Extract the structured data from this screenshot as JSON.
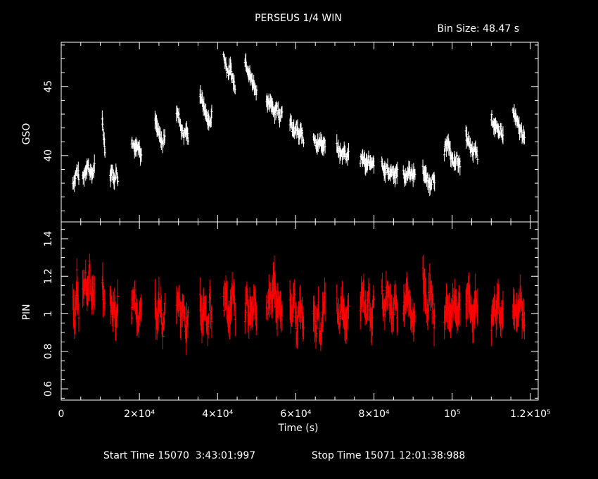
{
  "header": {
    "title": "PERSEUS 1/4 WIN",
    "bin_size": "Bin Size: 48.47 s"
  },
  "footer": {
    "start_time": "Start Time 15070  3:43:01:997",
    "stop_time": "Stop Time 15071 12:01:38:988"
  },
  "colors": {
    "background": "#000000",
    "axes": "#ffffff",
    "gso": "#ffffff",
    "pin": "#ff0000"
  },
  "chart_data": [
    {
      "type": "scatter",
      "panel": "top",
      "ylabel": "GSO",
      "xlim": [
        0,
        122000
      ],
      "ylim": [
        35.2,
        48.2
      ],
      "yticks": [
        {
          "value": 40,
          "label": "40"
        },
        {
          "value": 45,
          "label": "45"
        }
      ],
      "grid": false,
      "series": [
        {
          "color": "#ffffff",
          "segments": [
            {
              "x0": 3000,
              "x1": 4500,
              "values": [
                38.0,
                38.3,
                39.0,
                38.5
              ]
            },
            {
              "x0": 5500,
              "x1": 8500,
              "values": [
                38.3,
                38.8,
                39.4,
                38.9,
                38.6,
                39.2
              ]
            },
            {
              "x0": 10500,
              "x1": 11200,
              "values": [
                42.4,
                40.5
              ]
            },
            {
              "x0": 12500,
              "x1": 14500,
              "values": [
                38.5,
                39.0,
                38.1,
                38.8,
                38.4
              ]
            },
            {
              "x0": 18000,
              "x1": 20500,
              "values": [
                41.0,
                40.6,
                40.9,
                39.8
              ]
            },
            {
              "x0": 24000,
              "x1": 26500,
              "values": [
                42.6,
                42.0,
                41.5,
                41.2,
                40.8,
                41.6
              ]
            },
            {
              "x0": 29500,
              "x1": 32500,
              "values": [
                43.2,
                42.8,
                42.0,
                41.5,
                41.8,
                41.3
              ]
            },
            {
              "x0": 35500,
              "x1": 38500,
              "values": [
                44.5,
                44.0,
                43.5,
                43.0,
                42.6,
                42.3,
                43.0
              ]
            },
            {
              "x0": 41500,
              "x1": 44500,
              "values": [
                47.3,
                46.6,
                46.0,
                46.3,
                45.5,
                45.0
              ]
            },
            {
              "x0": 47000,
              "x1": 50000,
              "values": [
                47.0,
                46.5,
                46.0,
                45.6,
                45.3,
                45.0,
                44.6
              ]
            },
            {
              "x0": 52500,
              "x1": 56500,
              "values": [
                44.2,
                43.6,
                43.8,
                43.2,
                43.5,
                42.8,
                43.4
              ]
            },
            {
              "x0": 58500,
              "x1": 62000,
              "values": [
                42.5,
                42.0,
                41.6,
                42.1,
                41.3,
                41.8,
                41.0
              ]
            },
            {
              "x0": 64500,
              "x1": 67500,
              "values": [
                41.5,
                41.0,
                40.7,
                41.2,
                40.5,
                40.9
              ]
            },
            {
              "x0": 70500,
              "x1": 73500,
              "values": [
                40.6,
                40.3,
                40.0,
                40.5,
                39.9,
                40.2
              ]
            },
            {
              "x0": 76500,
              "x1": 80000,
              "values": [
                39.6,
                39.9,
                39.3,
                39.7,
                39.2,
                39.5
              ]
            },
            {
              "x0": 82000,
              "x1": 86000,
              "values": [
                39.3,
                38.8,
                39.1,
                38.6,
                39.0,
                38.5,
                38.9
              ]
            },
            {
              "x0": 87500,
              "x1": 90500,
              "values": [
                38.7,
                38.4,
                39.0,
                38.5,
                38.8
              ]
            },
            {
              "x0": 92500,
              "x1": 95500,
              "values": [
                39.0,
                38.6,
                38.2,
                37.9,
                38.3,
                38.0
              ]
            },
            {
              "x0": 98000,
              "x1": 102000,
              "values": [
                40.2,
                41.2,
                40.0,
                39.4,
                39.8,
                39.2
              ]
            },
            {
              "x0": 103500,
              "x1": 106500,
              "values": [
                41.5,
                41.0,
                40.5,
                40.1,
                40.6,
                40.0
              ]
            },
            {
              "x0": 110000,
              "x1": 113000,
              "values": [
                42.8,
                42.3,
                42.0,
                41.6,
                41.9,
                41.3
              ]
            },
            {
              "x0": 115500,
              "x1": 118500,
              "values": [
                43.2,
                42.8,
                42.3,
                41.9,
                41.6,
                41.2
              ]
            }
          ]
        }
      ]
    },
    {
      "type": "scatter",
      "panel": "bottom",
      "xlabel": "Time (s)",
      "ylabel": "PIN",
      "xlim": [
        0,
        122000
      ],
      "ylim": [
        0.54,
        1.49
      ],
      "xticks": [
        {
          "value": 0,
          "label": "0"
        },
        {
          "value": 20000,
          "label": "2×10⁴"
        },
        {
          "value": 40000,
          "label": "4×10⁴"
        },
        {
          "value": 60000,
          "label": "6×10⁴"
        },
        {
          "value": 80000,
          "label": "8×10⁴"
        },
        {
          "value": 100000,
          "label": "10⁵"
        },
        {
          "value": 120000,
          "label": "1.2×10⁵"
        }
      ],
      "yticks": [
        {
          "value": 0.6,
          "label": "0.6"
        },
        {
          "value": 0.8,
          "label": "0.8"
        },
        {
          "value": 1.0,
          "label": "1"
        },
        {
          "value": 1.2,
          "label": "1.2"
        },
        {
          "value": 1.4,
          "label": "1.4"
        }
      ],
      "grid": false,
      "series": [
        {
          "color": "#ff0000",
          "segments": [
            {
              "x0": 3000,
              "x1": 4500,
              "values": [
                1.05,
                0.95,
                1.2,
                1.0
              ]
            },
            {
              "x0": 5500,
              "x1": 8500,
              "values": [
                1.15,
                1.2,
                1.1,
                1.25,
                1.05,
                1.15
              ]
            },
            {
              "x0": 10500,
              "x1": 11200,
              "values": [
                1.15,
                1.05
              ]
            },
            {
              "x0": 12500,
              "x1": 14500,
              "values": [
                1.1,
                1.0,
                1.05,
                0.95,
                1.1
              ]
            },
            {
              "x0": 18000,
              "x1": 20500,
              "values": [
                1.0,
                1.1,
                0.95,
                1.05
              ]
            },
            {
              "x0": 24000,
              "x1": 26500,
              "values": [
                1.05,
                0.95,
                1.1,
                1.0,
                0.9,
                1.05
              ]
            },
            {
              "x0": 29500,
              "x1": 32500,
              "values": [
                1.0,
                1.1,
                0.95,
                1.05,
                0.9,
                1.0
              ]
            },
            {
              "x0": 35500,
              "x1": 38500,
              "values": [
                1.1,
                0.95,
                1.05,
                1.0,
                0.9,
                1.1,
                1.0
              ]
            },
            {
              "x0": 41500,
              "x1": 44500,
              "values": [
                1.05,
                1.1,
                0.95,
                1.0,
                1.15,
                1.0
              ]
            },
            {
              "x0": 47000,
              "x1": 50000,
              "values": [
                1.0,
                1.1,
                0.95,
                1.05,
                1.0,
                1.1,
                0.95
              ]
            },
            {
              "x0": 52500,
              "x1": 56500,
              "values": [
                1.0,
                1.1,
                1.05,
                1.2,
                1.0,
                1.1,
                0.95
              ]
            },
            {
              "x0": 58500,
              "x1": 62000,
              "values": [
                1.05,
                1.0,
                1.1,
                0.9,
                1.05,
                1.0,
                0.95
              ]
            },
            {
              "x0": 64500,
              "x1": 67500,
              "values": [
                1.0,
                0.9,
                1.05,
                0.85,
                1.0,
                1.1
              ]
            },
            {
              "x0": 70500,
              "x1": 73500,
              "values": [
                1.05,
                0.95,
                1.1,
                1.0,
                0.9,
                1.05
              ]
            },
            {
              "x0": 76500,
              "x1": 80000,
              "values": [
                1.05,
                1.15,
                1.0,
                1.1,
                0.95,
                1.1
              ]
            },
            {
              "x0": 82000,
              "x1": 86000,
              "values": [
                1.1,
                1.0,
                1.15,
                1.05,
                0.95,
                1.1,
                1.0
              ]
            },
            {
              "x0": 87500,
              "x1": 90500,
              "values": [
                1.0,
                1.1,
                1.05,
                0.95,
                1.0
              ]
            },
            {
              "x0": 92500,
              "x1": 95500,
              "values": [
                1.2,
                1.1,
                1.0,
                1.15,
                1.05,
                0.95
              ]
            },
            {
              "x0": 98000,
              "x1": 102000,
              "values": [
                1.0,
                1.05,
                0.95,
                1.1,
                1.0,
                1.05
              ]
            },
            {
              "x0": 103500,
              "x1": 106500,
              "values": [
                1.05,
                1.15,
                1.0,
                0.95,
                1.1,
                1.0
              ]
            },
            {
              "x0": 110000,
              "x1": 113000,
              "values": [
                0.95,
                1.05,
                1.0,
                1.1,
                0.95,
                1.05
              ]
            },
            {
              "x0": 115500,
              "x1": 118500,
              "values": [
                1.05,
                1.0,
                0.95,
                1.1,
                1.0,
                0.95
              ]
            }
          ]
        }
      ]
    }
  ]
}
